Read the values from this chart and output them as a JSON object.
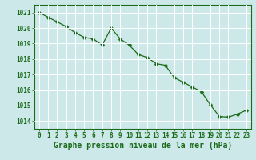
{
  "x": [
    0,
    1,
    2,
    3,
    4,
    5,
    6,
    7,
    8,
    9,
    10,
    11,
    12,
    13,
    14,
    15,
    16,
    17,
    18,
    19,
    20,
    21,
    22,
    23
  ],
  "y": [
    1021.0,
    1020.7,
    1020.4,
    1020.1,
    1019.7,
    1019.4,
    1019.3,
    1018.9,
    1020.0,
    1019.3,
    1018.9,
    1018.3,
    1018.1,
    1017.7,
    1017.6,
    1016.8,
    1016.5,
    1016.2,
    1015.9,
    1015.05,
    1014.3,
    1014.25,
    1014.45,
    1014.7
  ],
  "line_color": "#1a6b1a",
  "marker": "D",
  "marker_size": 2.5,
  "bg_color": "#cce8e8",
  "grid_color": "#ffffff",
  "tick_color": "#1a6b1a",
  "label_color": "#1a6b1a",
  "xlabel": "Graphe pression niveau de la mer (hPa)",
  "ylim": [
    1013.5,
    1021.5
  ],
  "yticks": [
    1014,
    1015,
    1016,
    1017,
    1018,
    1019,
    1020,
    1021
  ],
  "xticks": [
    0,
    1,
    2,
    3,
    4,
    5,
    6,
    7,
    8,
    9,
    10,
    11,
    12,
    13,
    14,
    15,
    16,
    17,
    18,
    19,
    20,
    21,
    22,
    23
  ],
  "xlabel_fontsize": 7,
  "tick_fontsize": 5.5
}
